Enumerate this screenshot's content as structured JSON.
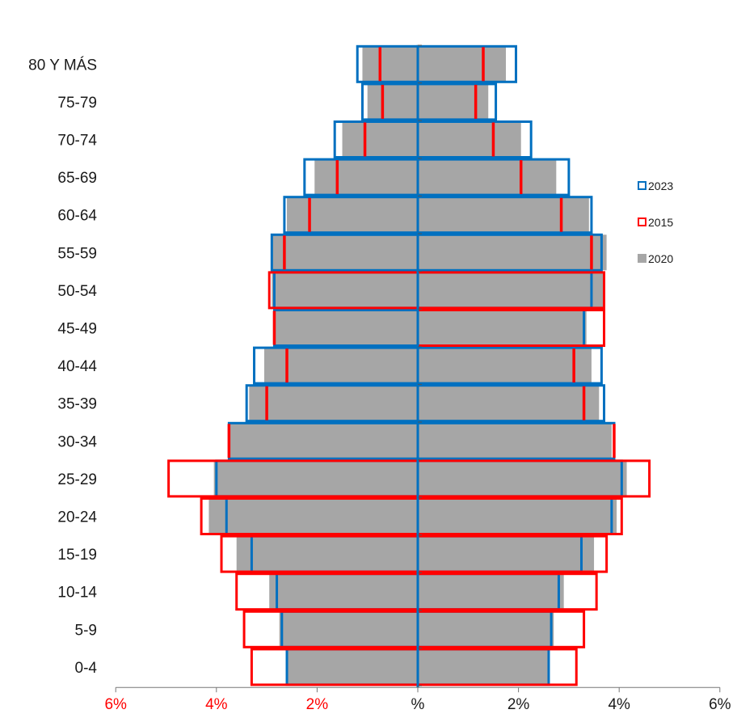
{
  "chart_data": {
    "type": "bar",
    "orientation": "horizontal-population-pyramid",
    "categories": [
      "80 Y MÁS",
      "75-79",
      "70-74",
      "65-69",
      "60-64",
      "55-59",
      "50-54",
      "45-49",
      "40-44",
      "35-39",
      "30-34",
      "25-29",
      "20-24",
      "15-19",
      "10-14",
      "5-9",
      "0-4"
    ],
    "xlim": [
      -6,
      6
    ],
    "x_ticks": [
      {
        "value": -6,
        "label": "6%",
        "color": "#ff0000"
      },
      {
        "value": -4,
        "label": "4%",
        "color": "#ff0000"
      },
      {
        "value": -2,
        "label": "2%",
        "color": "#ff0000"
      },
      {
        "value": 0,
        "label": "%",
        "color": "#1a1a1a"
      },
      {
        "value": 2,
        "label": "2%",
        "color": "#1a1a1a"
      },
      {
        "value": 4,
        "label": "4%",
        "color": "#1a1a1a"
      },
      {
        "value": 6,
        "label": "6%",
        "color": "#1a1a1a"
      }
    ],
    "legend": {
      "placement": "right"
    },
    "series": [
      {
        "name": "2020",
        "style": "filled-bar",
        "color": "#a6a6a6",
        "left": [
          1.1,
          1.0,
          1.5,
          2.05,
          2.6,
          2.9,
          2.9,
          2.85,
          3.05,
          3.35,
          3.75,
          4.05,
          4.15,
          3.6,
          2.95,
          2.75,
          2.6
        ],
        "right": [
          1.75,
          1.4,
          2.05,
          2.75,
          3.4,
          3.75,
          3.7,
          3.35,
          3.45,
          3.6,
          3.85,
          4.15,
          3.95,
          3.5,
          2.9,
          2.7,
          2.6
        ]
      },
      {
        "name": "2023",
        "style": "outline-bar",
        "color": "#0070c0",
        "left": [
          1.2,
          1.1,
          1.65,
          2.25,
          2.65,
          2.9,
          2.85,
          2.85,
          3.25,
          3.4,
          3.75,
          4.0,
          3.8,
          3.3,
          2.8,
          2.7,
          2.6
        ],
        "right": [
          1.95,
          1.55,
          2.25,
          3.0,
          3.45,
          3.65,
          3.45,
          3.3,
          3.65,
          3.7,
          3.9,
          4.05,
          3.85,
          3.25,
          2.8,
          2.65,
          2.6
        ]
      },
      {
        "name": "2015",
        "style": "outline-bar",
        "color": "#ff0000",
        "left": [
          0.75,
          0.7,
          1.05,
          1.6,
          2.15,
          2.65,
          2.95,
          2.85,
          2.6,
          3.0,
          3.75,
          4.95,
          4.3,
          3.9,
          3.6,
          3.45,
          3.3
        ],
        "right": [
          1.3,
          1.15,
          1.5,
          2.05,
          2.85,
          3.45,
          3.7,
          3.7,
          3.1,
          3.3,
          3.9,
          4.6,
          4.05,
          3.75,
          3.55,
          3.3,
          3.15
        ]
      }
    ]
  },
  "legend_items": [
    {
      "label": "2023",
      "color": "#0070c0",
      "style": "outline"
    },
    {
      "label": "2015",
      "color": "#ff0000",
      "style": "outline"
    },
    {
      "label": "2020",
      "color": "#a6a6a6",
      "style": "filled"
    }
  ]
}
